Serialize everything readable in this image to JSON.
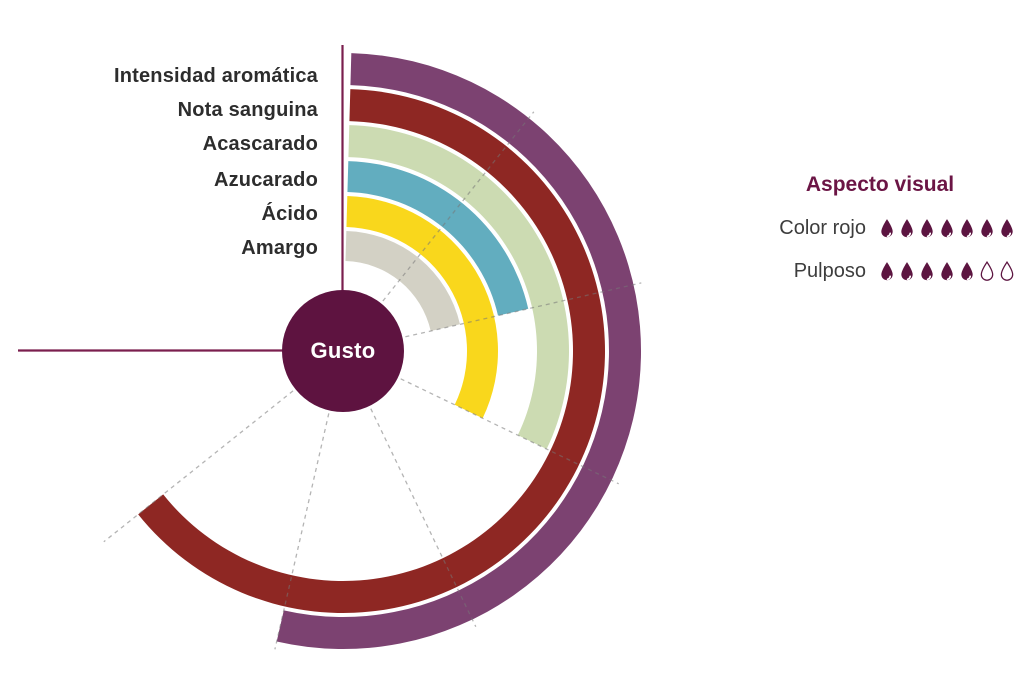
{
  "chart_data": {
    "type": "radial_bar",
    "center_label": "Gusto",
    "scale": {
      "max_units": 7,
      "max_angle_deg": 270,
      "unit_angle_deg": 38.571,
      "direction": "clockwise_from_top",
      "gridlines": "dashed_radial_per_unit"
    },
    "ring_order": "outermost_to_innermost",
    "categories": [
      "Intensidad aromática",
      "Nota sanguina",
      "Acascarado",
      "Azucarado",
      "Ácido",
      "Amargo"
    ],
    "values": [
      5,
      6,
      3,
      2,
      3,
      2
    ],
    "colors": [
      "#7c4271",
      "#8e2723",
      "#ccdbb2",
      "#62adbf",
      "#f9d71c",
      "#d3d1c5"
    ]
  },
  "legend": {
    "title": "Aspecto visual",
    "max_drops": 7,
    "items": [
      {
        "label": "Color rojo",
        "filled": 7
      },
      {
        "label": "Pulposo",
        "filled": 5
      }
    ]
  },
  "colors": {
    "accent_plum": "#5e1340",
    "axis_line": "#7a1f4e",
    "droplet": "#5c1440",
    "category_text": "#2d2d2d",
    "legend_text": "#3d3d3d",
    "legend_title": "#6b1545",
    "gridline": "#777777"
  }
}
